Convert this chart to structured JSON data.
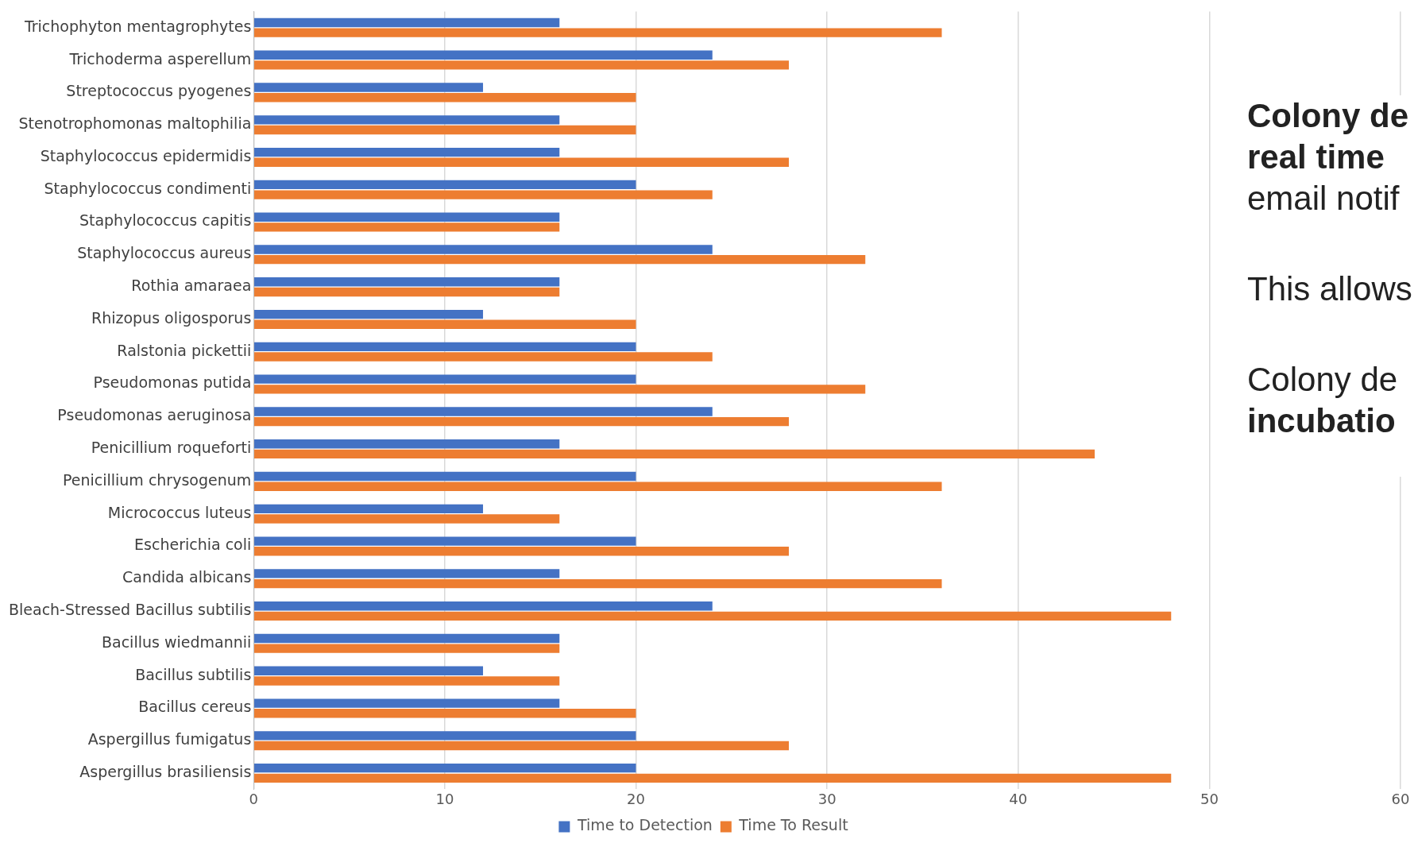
{
  "chart_data": {
    "type": "bar",
    "orientation": "horizontal",
    "categories": [
      "Trichophyton mentagrophytes",
      "Trichoderma asperellum",
      "Streptococcus pyogenes",
      "Stenotrophomonas maltophilia",
      "Staphylococcus epidermidis",
      "Staphylococcus condimenti",
      "Staphylococcus capitis",
      "Staphylococcus aureus",
      "Rothia amaraea",
      "Rhizopus oligosporus",
      "Ralstonia pickettii",
      "Pseudomonas putida",
      "Pseudomonas aeruginosa",
      "Penicillium roqueforti",
      "Penicillium chrysogenum",
      "Micrococcus luteus",
      "Escherichia coli",
      "Candida albicans",
      "Bleach-Stressed Bacillus subtilis",
      "Bacillus wiedmannii",
      "Bacillus subtilis",
      "Bacillus cereus",
      "Aspergillus fumigatus",
      "Aspergillus brasiliensis"
    ],
    "series": [
      {
        "name": "Time to Detection",
        "color": "#4472c4",
        "values": [
          16,
          24,
          12,
          16,
          16,
          20,
          16,
          24,
          16,
          12,
          20,
          20,
          24,
          16,
          20,
          12,
          20,
          16,
          24,
          16,
          12,
          16,
          20,
          20
        ]
      },
      {
        "name": "Time To Result",
        "color": "#ed7d31",
        "values": [
          36,
          28,
          20,
          20,
          28,
          24,
          16,
          32,
          16,
          20,
          24,
          32,
          28,
          44,
          36,
          16,
          28,
          36,
          48,
          16,
          16,
          20,
          28,
          48
        ]
      }
    ],
    "xlim": [
      0,
      60
    ],
    "xticks": [
      0,
      10,
      20,
      30,
      40,
      50,
      60
    ],
    "grid": "x",
    "legend": "bottom",
    "annotations": [
      "Colony de",
      "real time",
      "email notif",
      "This allows",
      "Colony de",
      "incubatio"
    ]
  }
}
